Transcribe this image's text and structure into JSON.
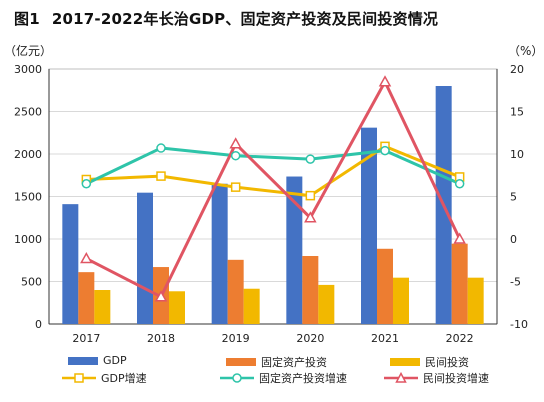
{
  "title": {
    "fig": "图1",
    "text": "2017-2022年长治GDP、固定资产投资及民间投资情况"
  },
  "units": {
    "left": "（亿元）",
    "right": "（%）"
  },
  "colors": {
    "gdp": "#4472C4",
    "fixed": "#ED7D31",
    "private": "#F2B800",
    "gdp_growth": "#F2B800",
    "fixed_growth": "#2EC4A9",
    "private_growth": "#E05563"
  },
  "chart_data": {
    "type": "bar",
    "categories": [
      "2017",
      "2018",
      "2019",
      "2020",
      "2021",
      "2022"
    ],
    "y_left": {
      "ylim": [
        0,
        3000
      ],
      "ticks": [
        "0",
        "500",
        "1000",
        "1500",
        "2000",
        "2500",
        "3000"
      ]
    },
    "y_right": {
      "ylim": [
        -10,
        20
      ],
      "ticks": [
        "-10",
        "-5",
        "0",
        "5",
        "10",
        "15",
        "20"
      ]
    },
    "grid": true,
    "legend_position": "bottom",
    "bar_series": [
      {
        "name": "GDP",
        "values": [
          1410,
          1545,
          1650,
          1735,
          2310,
          2800
        ],
        "axis": "left"
      },
      {
        "name": "固定资产投资",
        "values": [
          610,
          670,
          755,
          800,
          885,
          945
        ],
        "axis": "left"
      },
      {
        "name": "民间投资",
        "values": [
          400,
          385,
          415,
          460,
          545,
          545
        ],
        "axis": "left"
      }
    ],
    "line_series": [
      {
        "name": "GDP增速",
        "values": [
          7.0,
          7.4,
          6.1,
          5.1,
          10.9,
          7.3
        ],
        "axis": "right"
      },
      {
        "name": "固定资产投资增速",
        "values": [
          6.5,
          10.7,
          9.8,
          9.4,
          10.4,
          6.5
        ],
        "axis": "right"
      },
      {
        "name": "民间投资增速",
        "values": [
          -2.3,
          -6.8,
          11.2,
          2.5,
          18.5,
          0.0
        ],
        "axis": "right"
      }
    ]
  }
}
